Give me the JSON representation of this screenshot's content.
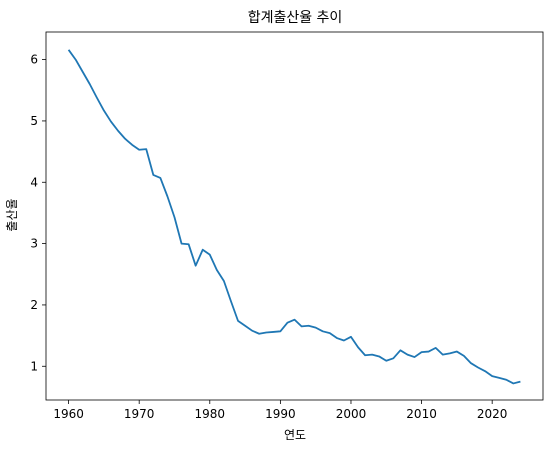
{
  "chart_data": {
    "type": "line",
    "title": "합계출산율 추이",
    "xlabel": "연도",
    "ylabel": "출산율",
    "xlim": [
      1956.8,
      2027.2
    ],
    "ylim": [
      0.45,
      6.45
    ],
    "xticks": [
      1960,
      1970,
      1980,
      1990,
      2000,
      2010,
      2020
    ],
    "yticks": [
      1,
      2,
      3,
      4,
      5,
      6
    ],
    "grid": false,
    "line_color": "#1f77b4",
    "series": [
      {
        "x": [
          1960,
          1961,
          1962,
          1963,
          1964,
          1965,
          1966,
          1967,
          1968,
          1969,
          1970,
          1971,
          1972,
          1973,
          1974,
          1975,
          1976,
          1977,
          1978,
          1979,
          1980,
          1981,
          1982,
          1983,
          1984,
          1985,
          1986,
          1987,
          1988,
          1989,
          1990,
          1991,
          1992,
          1993,
          1994,
          1995,
          1996,
          1997,
          1998,
          1999,
          2000,
          2001,
          2002,
          2003,
          2004,
          2005,
          2006,
          2007,
          2008,
          2009,
          2010,
          2011,
          2012,
          2013,
          2014,
          2015,
          2016,
          2017,
          2018,
          2019,
          2020,
          2021,
          2022,
          2023,
          2024
        ],
        "values": [
          6.16,
          6.0,
          5.8,
          5.6,
          5.38,
          5.17,
          4.99,
          4.84,
          4.71,
          4.61,
          4.53,
          4.54,
          4.12,
          4.07,
          3.77,
          3.43,
          3.0,
          2.99,
          2.64,
          2.9,
          2.82,
          2.57,
          2.39,
          2.06,
          1.74,
          1.66,
          1.58,
          1.53,
          1.55,
          1.56,
          1.57,
          1.71,
          1.76,
          1.65,
          1.66,
          1.63,
          1.57,
          1.54,
          1.46,
          1.42,
          1.48,
          1.31,
          1.18,
          1.19,
          1.16,
          1.09,
          1.13,
          1.26,
          1.19,
          1.15,
          1.23,
          1.24,
          1.3,
          1.19,
          1.21,
          1.24,
          1.17,
          1.05,
          0.98,
          0.92,
          0.84,
          0.81,
          0.78,
          0.72,
          0.75
        ]
      }
    ]
  }
}
